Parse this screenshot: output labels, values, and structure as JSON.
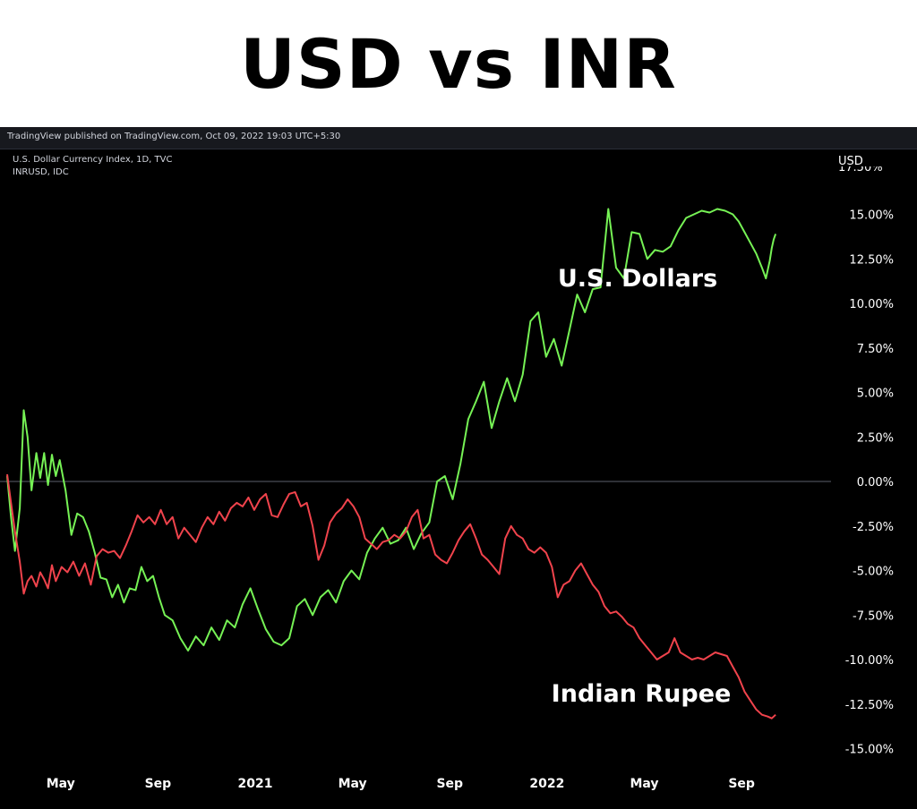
{
  "title": "USD vs INR",
  "publisher_line": "TradingView published on TradingView.com, Oct 09, 2022 19:03 UTC+5:30",
  "symbols": [
    "U.S. Dollar Currency Index, 1D, TVC",
    "INRUSD, IDC"
  ],
  "colors": {
    "usd": "#76f255",
    "inr": "#f0434c",
    "background": "#000000",
    "zero_line": "#5d606b"
  },
  "chart_data": {
    "type": "line",
    "title": "USD vs INR",
    "y_axis_name": "USD",
    "y_unit": "%",
    "ylim": [
      -15,
      17.5
    ],
    "y_ticks": [
      "17.50%",
      "15.00%",
      "12.50%",
      "10.00%",
      "7.50%",
      "5.00%",
      "2.50%",
      "0.00%",
      "-2.50%",
      "-5.00%",
      "-7.50%",
      "-10.00%",
      "-12.50%",
      "-15.00%"
    ],
    "x_ticks": [
      "May",
      "Sep",
      "2021",
      "May",
      "Sep",
      "2022",
      "May",
      "Sep"
    ],
    "x_tick_positions": [
      2.55,
      3.55,
      4.55,
      5.55,
      6.55,
      7.55,
      8.55,
      9.55
    ],
    "xlim": [
      2.0,
      10.0
    ],
    "grid": false,
    "annotations": [
      "U.S. Dollars",
      "Indian Rupee"
    ],
    "series": [
      {
        "name": "U.S. Dollars",
        "color": "#76f255",
        "x": [
          2.0,
          2.04,
          2.08,
          2.13,
          2.17,
          2.21,
          2.25,
          2.3,
          2.34,
          2.38,
          2.42,
          2.46,
          2.5,
          2.54,
          2.6,
          2.66,
          2.72,
          2.78,
          2.84,
          2.9,
          2.96,
          3.02,
          3.08,
          3.14,
          3.2,
          3.26,
          3.32,
          3.38,
          3.44,
          3.5,
          3.56,
          3.62,
          3.7,
          3.78,
          3.86,
          3.94,
          4.02,
          4.1,
          4.18,
          4.26,
          4.34,
          4.42,
          4.5,
          4.58,
          4.66,
          4.74,
          4.82,
          4.9,
          4.98,
          5.06,
          5.14,
          5.22,
          5.3,
          5.38,
          5.46,
          5.54,
          5.62,
          5.7,
          5.78,
          5.86,
          5.94,
          6.02,
          6.1,
          6.18,
          6.26,
          6.34,
          6.42,
          6.5,
          6.58,
          6.66,
          6.74,
          6.82,
          6.9,
          6.98,
          7.06,
          7.14,
          7.22,
          7.3,
          7.38,
          7.46,
          7.54,
          7.62,
          7.7,
          7.78,
          7.86,
          7.94,
          8.02,
          8.1,
          8.18,
          8.26,
          8.34,
          8.42,
          8.5,
          8.58,
          8.66,
          8.74,
          8.82,
          8.9,
          8.98,
          9.06,
          9.14,
          9.22,
          9.3,
          9.38,
          9.46,
          9.52,
          9.58,
          9.64,
          9.7,
          9.76,
          9.8,
          9.84,
          9.86,
          9.88,
          9.9
        ],
        "values": [
          0.3,
          -2.0,
          -3.9,
          -1.5,
          4.0,
          2.5,
          -0.5,
          1.6,
          0.2,
          1.6,
          -0.2,
          1.5,
          0.3,
          1.2,
          -0.5,
          -3.0,
          -1.8,
          -2.0,
          -2.8,
          -4.0,
          -5.4,
          -5.5,
          -6.5,
          -5.8,
          -6.8,
          -6.0,
          -6.1,
          -4.8,
          -5.6,
          -5.3,
          -6.5,
          -7.5,
          -7.8,
          -8.8,
          -9.5,
          -8.7,
          -9.2,
          -8.2,
          -8.9,
          -7.8,
          -8.2,
          -6.9,
          -6.0,
          -7.2,
          -8.3,
          -9.0,
          -9.2,
          -8.8,
          -7.0,
          -6.6,
          -7.5,
          -6.5,
          -6.1,
          -6.8,
          -5.6,
          -5.0,
          -5.5,
          -4.0,
          -3.2,
          -2.6,
          -3.5,
          -3.3,
          -2.6,
          -3.8,
          -2.9,
          -2.3,
          0.0,
          0.3,
          -1.0,
          1.0,
          3.5,
          4.5,
          5.6,
          3.0,
          4.5,
          5.8,
          4.5,
          6.0,
          9.0,
          9.5,
          7.0,
          8.0,
          6.5,
          8.5,
          10.5,
          9.5,
          10.8,
          10.9,
          15.3,
          12.0,
          11.4,
          14.0,
          13.9,
          12.5,
          13.0,
          12.9,
          13.2,
          14.1,
          14.8,
          15.0,
          15.2,
          15.1,
          15.3,
          15.2,
          15.0,
          14.6,
          14.0,
          13.4,
          12.8,
          12.0,
          11.4,
          12.4,
          13.1,
          13.6,
          13.9
        ]
      },
      {
        "name": "Indian Rupee",
        "color": "#f0434c",
        "x": [
          2.0,
          2.04,
          2.08,
          2.13,
          2.17,
          2.21,
          2.25,
          2.3,
          2.34,
          2.38,
          2.42,
          2.46,
          2.5,
          2.56,
          2.62,
          2.68,
          2.74,
          2.8,
          2.86,
          2.92,
          2.98,
          3.04,
          3.1,
          3.16,
          3.22,
          3.28,
          3.34,
          3.4,
          3.46,
          3.52,
          3.58,
          3.64,
          3.7,
          3.76,
          3.82,
          3.88,
          3.94,
          4.0,
          4.06,
          4.12,
          4.18,
          4.24,
          4.3,
          4.36,
          4.42,
          4.48,
          4.54,
          4.6,
          4.66,
          4.72,
          4.78,
          4.84,
          4.9,
          4.96,
          5.02,
          5.08,
          5.14,
          5.2,
          5.26,
          5.32,
          5.38,
          5.44,
          5.5,
          5.56,
          5.62,
          5.68,
          5.74,
          5.8,
          5.86,
          5.92,
          5.98,
          6.04,
          6.1,
          6.16,
          6.22,
          6.28,
          6.34,
          6.4,
          6.46,
          6.52,
          6.58,
          6.64,
          6.7,
          6.76,
          6.82,
          6.88,
          6.94,
          7.0,
          7.06,
          7.12,
          7.18,
          7.24,
          7.3,
          7.36,
          7.42,
          7.48,
          7.54,
          7.6,
          7.66,
          7.72,
          7.78,
          7.84,
          7.9,
          7.96,
          8.02,
          8.08,
          8.14,
          8.2,
          8.26,
          8.32,
          8.38,
          8.44,
          8.5,
          8.56,
          8.62,
          8.68,
          8.74,
          8.8,
          8.86,
          8.92,
          8.98,
          9.04,
          9.1,
          9.16,
          9.22,
          9.28,
          9.34,
          9.4,
          9.46,
          9.52,
          9.58,
          9.64,
          9.7,
          9.76,
          9.82,
          9.86,
          9.9
        ],
        "values": [
          0.4,
          -1.2,
          -2.8,
          -4.5,
          -6.3,
          -5.6,
          -5.3,
          -5.9,
          -5.1,
          -5.5,
          -6.0,
          -4.7,
          -5.6,
          -4.8,
          -5.1,
          -4.5,
          -5.3,
          -4.6,
          -5.8,
          -4.2,
          -3.8,
          -4.0,
          -3.9,
          -4.3,
          -3.6,
          -2.8,
          -1.9,
          -2.3,
          -2.0,
          -2.4,
          -1.6,
          -2.4,
          -2.0,
          -3.2,
          -2.6,
          -3.0,
          -3.4,
          -2.6,
          -2.0,
          -2.4,
          -1.7,
          -2.2,
          -1.5,
          -1.2,
          -1.4,
          -0.9,
          -1.6,
          -1.0,
          -0.7,
          -1.9,
          -2.0,
          -1.3,
          -0.7,
          -0.6,
          -1.4,
          -1.2,
          -2.5,
          -4.4,
          -3.6,
          -2.3,
          -1.8,
          -1.5,
          -1.0,
          -1.4,
          -2.0,
          -3.2,
          -3.5,
          -3.8,
          -3.4,
          -3.3,
          -3.0,
          -3.2,
          -2.8,
          -2.0,
          -1.6,
          -3.2,
          -3.0,
          -4.1,
          -4.4,
          -4.6,
          -4.0,
          -3.3,
          -2.8,
          -2.4,
          -3.2,
          -4.1,
          -4.4,
          -4.8,
          -5.2,
          -3.2,
          -2.5,
          -3.0,
          -3.2,
          -3.8,
          -4.0,
          -3.7,
          -4.0,
          -4.8,
          -6.5,
          -5.8,
          -5.6,
          -5.0,
          -4.6,
          -5.2,
          -5.8,
          -6.2,
          -7.0,
          -7.4,
          -7.3,
          -7.6,
          -8.0,
          -8.2,
          -8.8,
          -9.2,
          -9.6,
          -10.0,
          -9.8,
          -9.6,
          -8.8,
          -9.6,
          -9.8,
          -10.0,
          -9.9,
          -10.0,
          -9.8,
          -9.6,
          -9.7,
          -9.8,
          -10.4,
          -11.0,
          -11.8,
          -12.3,
          -12.8,
          -13.1,
          -13.2,
          -13.3,
          -13.1
        ]
      }
    ]
  }
}
